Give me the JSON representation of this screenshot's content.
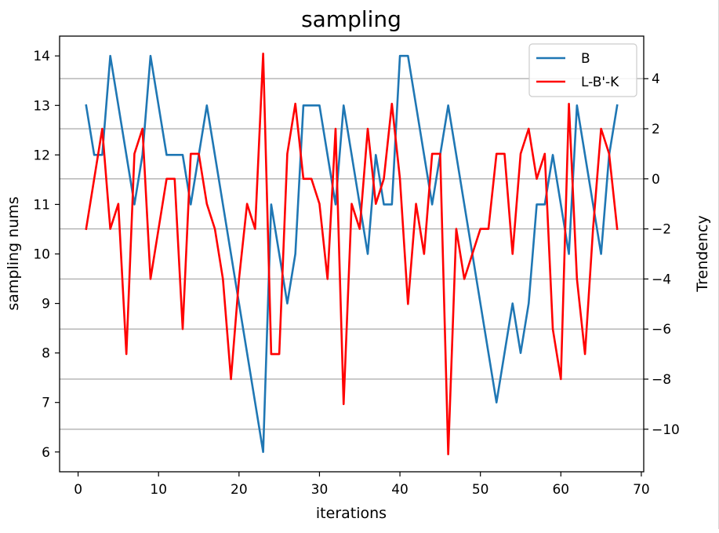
{
  "chart_data": {
    "type": "line",
    "title": "sampling",
    "xlabel": "iterations",
    "ylabel": "sampling nums",
    "y2label": "Trendency",
    "xlim": [
      -2.3,
      70.3
    ],
    "ylim": [
      5.6,
      14.4
    ],
    "y2lim": [
      -11.7,
      5.7
    ],
    "xticks": [
      0,
      10,
      20,
      30,
      40,
      50,
      60,
      70
    ],
    "yticks": [
      6,
      7,
      8,
      9,
      10,
      11,
      12,
      13,
      14
    ],
    "y2ticks": [
      -10,
      -8,
      -6,
      -4,
      -2,
      0,
      2,
      4
    ],
    "y2tick_labels": [
      "−10",
      "−8",
      "−6",
      "−4",
      "−2",
      "0",
      "2",
      "4"
    ],
    "grid": "horizontal lines at right-axis ticks",
    "legend_position": "top-right",
    "x": [
      1,
      2,
      3,
      4,
      5,
      6,
      7,
      8,
      9,
      10,
      11,
      12,
      13,
      14,
      15,
      16,
      17,
      18,
      19,
      20,
      21,
      22,
      23,
      24,
      25,
      26,
      27,
      28,
      29,
      30,
      31,
      32,
      33,
      34,
      35,
      36,
      37,
      38,
      39,
      40,
      41,
      42,
      43,
      44,
      45,
      46,
      47,
      48,
      49,
      50,
      51,
      52,
      53,
      54,
      55,
      56,
      57,
      58,
      59,
      60,
      61,
      62,
      63,
      64,
      65,
      66,
      67
    ],
    "series": [
      {
        "name": "B",
        "axis": "left",
        "color": "#1f77b4",
        "values": [
          13,
          12,
          12,
          14,
          13,
          12,
          11,
          12,
          14,
          13,
          12,
          12,
          12,
          11,
          12,
          13,
          12,
          11,
          10,
          9,
          8,
          7,
          6,
          11,
          10,
          9,
          10,
          13,
          13,
          13,
          12,
          11,
          13,
          12,
          11,
          10,
          12,
          11,
          11,
          14,
          14,
          13,
          12,
          11,
          12,
          13,
          12,
          11,
          10,
          9,
          8,
          7,
          8,
          9,
          8,
          9,
          11,
          11,
          12,
          11,
          10,
          13,
          12,
          11,
          10,
          12,
          13
        ]
      },
      {
        "name": "L-B'-K",
        "axis": "right",
        "color": "#ff0000",
        "values": [
          -2,
          0,
          2,
          -2,
          -1,
          -7,
          1,
          2,
          -4,
          -2,
          0,
          0,
          -6,
          1,
          1,
          -1,
          -2,
          -4,
          -8,
          -4,
          -1,
          -2,
          5,
          -7,
          -7,
          1,
          3,
          0,
          0,
          -1,
          -4,
          2,
          -9,
          -1,
          -2,
          2,
          -1,
          0,
          3,
          0,
          -5,
          -1,
          -3,
          1,
          1,
          -11,
          -2,
          -4,
          -3,
          -2,
          -2,
          1,
          1,
          -3,
          1,
          2,
          0,
          1,
          -6,
          -8,
          3,
          -4,
          -7,
          -2,
          2,
          1,
          -2
        ]
      }
    ]
  }
}
